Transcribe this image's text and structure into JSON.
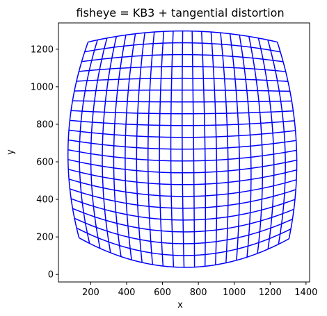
{
  "chart_data": {
    "type": "line",
    "title": "fisheye = KB3 + tangential distortion",
    "xlabel": "x",
    "ylabel": "y",
    "xlim": [
      20,
      1420
    ],
    "ylim": [
      -40,
      1340
    ],
    "xticks": [
      200,
      400,
      600,
      800,
      1000,
      1200,
      1400
    ],
    "yticks": [
      0,
      200,
      400,
      600,
      800,
      1000,
      1200
    ],
    "xtick_labels": [
      "200",
      "400",
      "600",
      "800",
      "1000",
      "1200",
      "1400"
    ],
    "ytick_labels": [
      "0",
      "200",
      "400",
      "600",
      "800",
      "1000",
      "1200"
    ],
    "grid": false,
    "line_color": "#0000ff",
    "grid_size": [
      21,
      21
    ],
    "corners": {
      "top_left": [
        185,
        1238
      ],
      "top_right": [
        1240,
        1238
      ],
      "bottom_left": [
        135,
        195
      ],
      "bottom_right": [
        1305,
        190
      ]
    },
    "edge_extrema": {
      "top_center": [
        705,
        1297
      ],
      "bottom_center": [
        705,
        38
      ],
      "left_center": [
        75,
        700
      ],
      "right_center": [
        1345,
        700
      ]
    },
    "series": [
      {
        "values": [
          [
            185,
            1238
          ],
          [
            710,
            1297
          ],
          [
            1240,
            1238
          ]
        ]
      }
    ]
  }
}
